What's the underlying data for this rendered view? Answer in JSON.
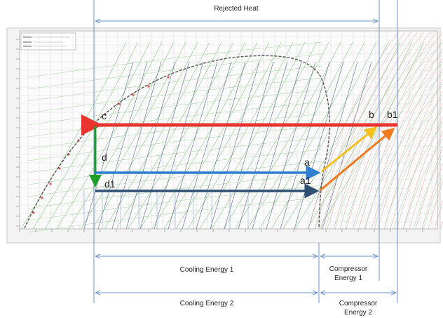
{
  "annotations": {
    "rejected_heat": "Rejected Heat",
    "cooling_energy_1": "Cooling Energy 1",
    "cooling_energy_2": "Cooling Energy 2",
    "compressor_energy_1_line1": "Compressor",
    "compressor_energy_1_line2": "Energy 1",
    "compressor_energy_2_line1": "Compressor",
    "compressor_energy_2_line2": "Energy 2"
  },
  "state_points": {
    "a": "a",
    "a1": "a1",
    "b": "b",
    "b1": "b1",
    "c": "c",
    "d": "d",
    "d1": "d1"
  },
  "colors": {
    "condensing": "#e8332e",
    "evaporation_1": "#2e7fd0",
    "evaporation_2": "#2f4f73",
    "expansion": "#1f9e2a",
    "compression_1": "#f4c01e",
    "compression_2": "#f07a1e",
    "dimension_lines": "#6f95c8"
  }
}
